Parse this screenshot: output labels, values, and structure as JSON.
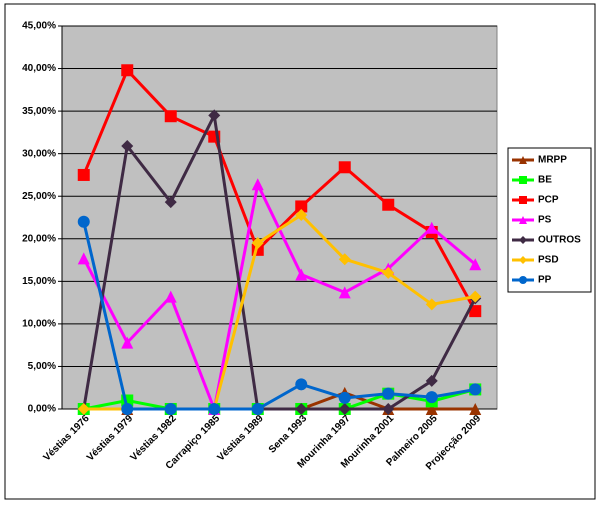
{
  "chart_data": {
    "type": "line",
    "categories": [
      "Véstias 1976",
      "Véstias 1979",
      "Véstias 1982",
      "Carrapiço 1985",
      "Véstias 1989",
      "Sena 1993",
      "Mourinha 1997",
      "Mourinha 2001",
      "Palmeiro 2005",
      "Projecção 2009"
    ],
    "series": [
      {
        "name": "MRPP",
        "color": "#993300",
        "marker": "triangle",
        "values": [
          0,
          0,
          0,
          0,
          0,
          0,
          1.9,
          0,
          0,
          0
        ]
      },
      {
        "name": "BE",
        "color": "#00ff00",
        "marker": "square",
        "values": [
          0,
          1.0,
          0,
          0,
          0,
          0,
          0,
          1.8,
          0.9,
          2.3
        ]
      },
      {
        "name": "PCP",
        "color": "#ff0000",
        "marker": "square",
        "values": [
          27.5,
          39.8,
          34.4,
          32.0,
          18.7,
          23.8,
          28.4,
          24.0,
          20.8,
          11.5
        ]
      },
      {
        "name": "PS",
        "color": "#ff00ff",
        "marker": "triangle",
        "values": [
          17.7,
          7.8,
          13.2,
          0,
          26.4,
          15.8,
          13.7,
          16.5,
          21.3,
          17.0
        ]
      },
      {
        "name": "OUTROS",
        "color": "#3f2a44",
        "marker": "diamond",
        "values": [
          0,
          30.9,
          24.3,
          34.5,
          0,
          0,
          0,
          0,
          3.3,
          13.0
        ]
      },
      {
        "name": "PSD",
        "color": "#ffc000",
        "marker": "diamond",
        "values": [
          0,
          0,
          0,
          0,
          19.5,
          22.8,
          17.6,
          16.0,
          12.3,
          13.2
        ]
      },
      {
        "name": "PP",
        "color": "#0066cc",
        "marker": "circle",
        "values": [
          22.0,
          0,
          0,
          0,
          0,
          2.9,
          1.3,
          1.8,
          1.4,
          2.3
        ]
      }
    ],
    "ylim": [
      0,
      45
    ],
    "yticks": [
      {
        "value": 0,
        "label": "0,00%"
      },
      {
        "value": 5,
        "label": "5,00%"
      },
      {
        "value": 10,
        "label": "10,00%"
      },
      {
        "value": 15,
        "label": "15,00%"
      },
      {
        "value": 20,
        "label": "20,00%"
      },
      {
        "value": 25,
        "label": "25,00%"
      },
      {
        "value": 30,
        "label": "30,00%"
      },
      {
        "value": 35,
        "label": "35,00%"
      },
      {
        "value": 40,
        "label": "40,00%"
      },
      {
        "value": 45,
        "label": "45,00%"
      }
    ],
    "grid": true,
    "legend": "right",
    "plot_background": "#c0c0c0"
  }
}
